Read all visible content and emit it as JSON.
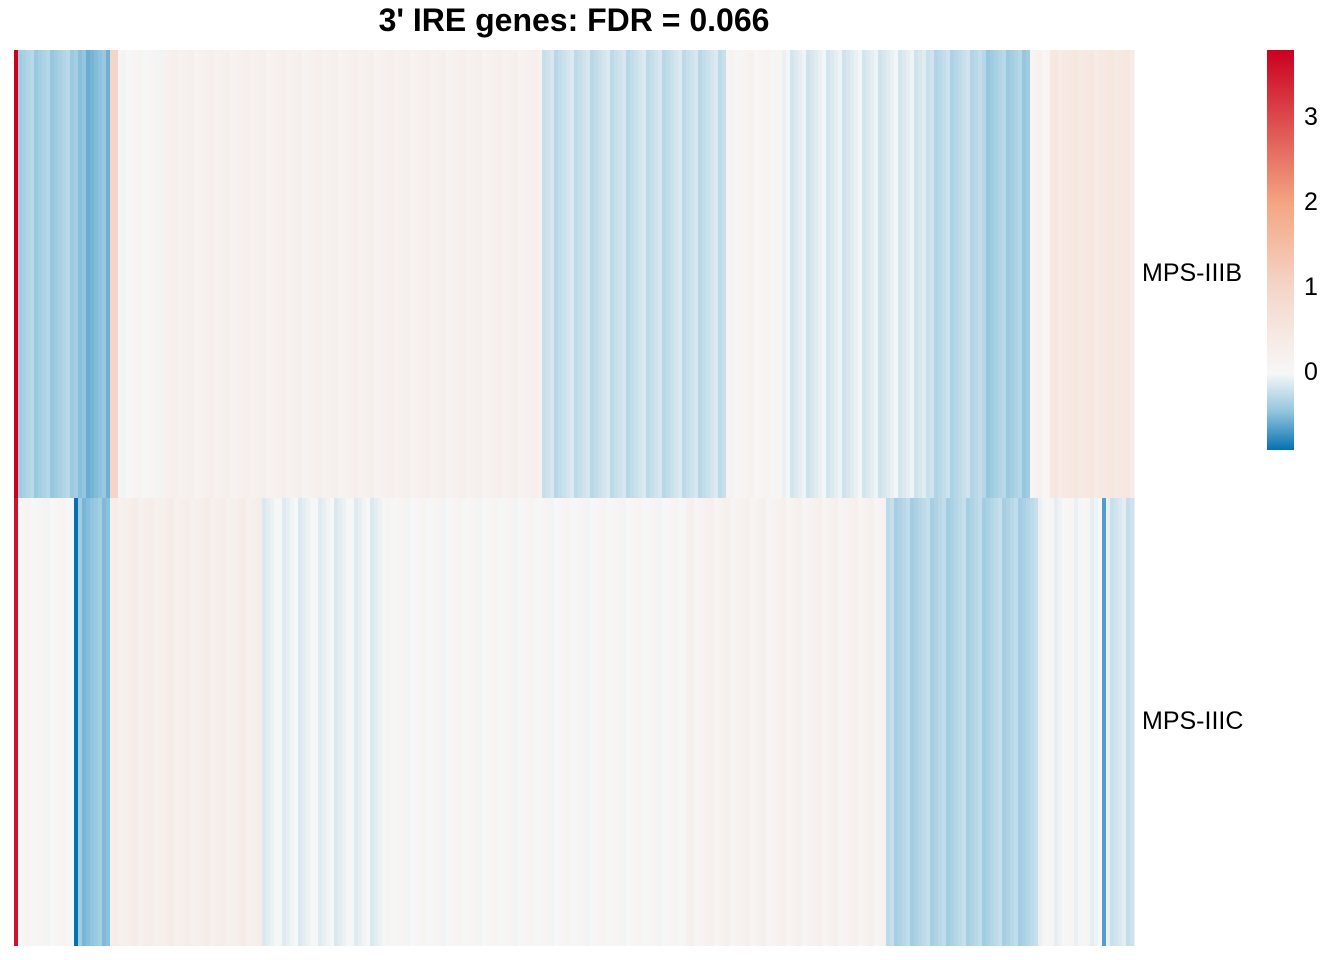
{
  "chart_data": {
    "type": "heatmap",
    "title": "3' IRE genes: FDR = 0.066",
    "rows": [
      "MPS-IIIB",
      "MPS-IIIC"
    ],
    "column_count": 280,
    "column_segments": {
      "MPS-IIIB": [
        {
          "from": 0,
          "to": 1,
          "value": 3.8
        },
        {
          "from": 1,
          "to": 16,
          "value": -0.35
        },
        {
          "from": 16,
          "to": 24,
          "value": -0.5
        },
        {
          "from": 24,
          "to": 26,
          "value": 1.0
        },
        {
          "from": 26,
          "to": 37,
          "value": 0.05
        },
        {
          "from": 37,
          "to": 132,
          "value": 0.2
        },
        {
          "from": 132,
          "to": 178,
          "value": -0.2
        },
        {
          "from": 178,
          "to": 192,
          "value": 0.1
        },
        {
          "from": 192,
          "to": 228,
          "value": -0.1
        },
        {
          "from": 228,
          "to": 242,
          "value": -0.25
        },
        {
          "from": 242,
          "to": 254,
          "value": -0.35
        },
        {
          "from": 254,
          "to": 259,
          "value": 0.1
        },
        {
          "from": 259,
          "to": 280,
          "value": 0.45
        }
      ],
      "MPS-IIIC": [
        {
          "from": 0,
          "to": 1,
          "value": 3.6
        },
        {
          "from": 1,
          "to": 15,
          "value": 0.05
        },
        {
          "from": 15,
          "to": 16,
          "value": -0.9
        },
        {
          "from": 16,
          "to": 24,
          "value": -0.45
        },
        {
          "from": 24,
          "to": 62,
          "value": 0.25
        },
        {
          "from": 62,
          "to": 93,
          "value": -0.05
        },
        {
          "from": 93,
          "to": 168,
          "value": 0.05
        },
        {
          "from": 168,
          "to": 218,
          "value": 0.15
        },
        {
          "from": 218,
          "to": 256,
          "value": -0.3
        },
        {
          "from": 256,
          "to": 272,
          "value": 0.0
        },
        {
          "from": 272,
          "to": 273,
          "value": -0.7
        },
        {
          "from": 273,
          "to": 280,
          "value": -0.15
        }
      ]
    },
    "color_scale": {
      "min": -0.9,
      "max": 3.8,
      "stops": [
        {
          "value": -0.9,
          "color": "#0571b0"
        },
        {
          "value": -0.45,
          "color": "#92c5de"
        },
        {
          "value": 0.0,
          "color": "#f7f7f7"
        },
        {
          "value": 1.0,
          "color": "#f4d6c8"
        },
        {
          "value": 2.0,
          "color": "#f4a582"
        },
        {
          "value": 3.8,
          "color": "#ca0020"
        }
      ],
      "ticks": [
        0,
        1,
        2,
        3
      ]
    }
  }
}
